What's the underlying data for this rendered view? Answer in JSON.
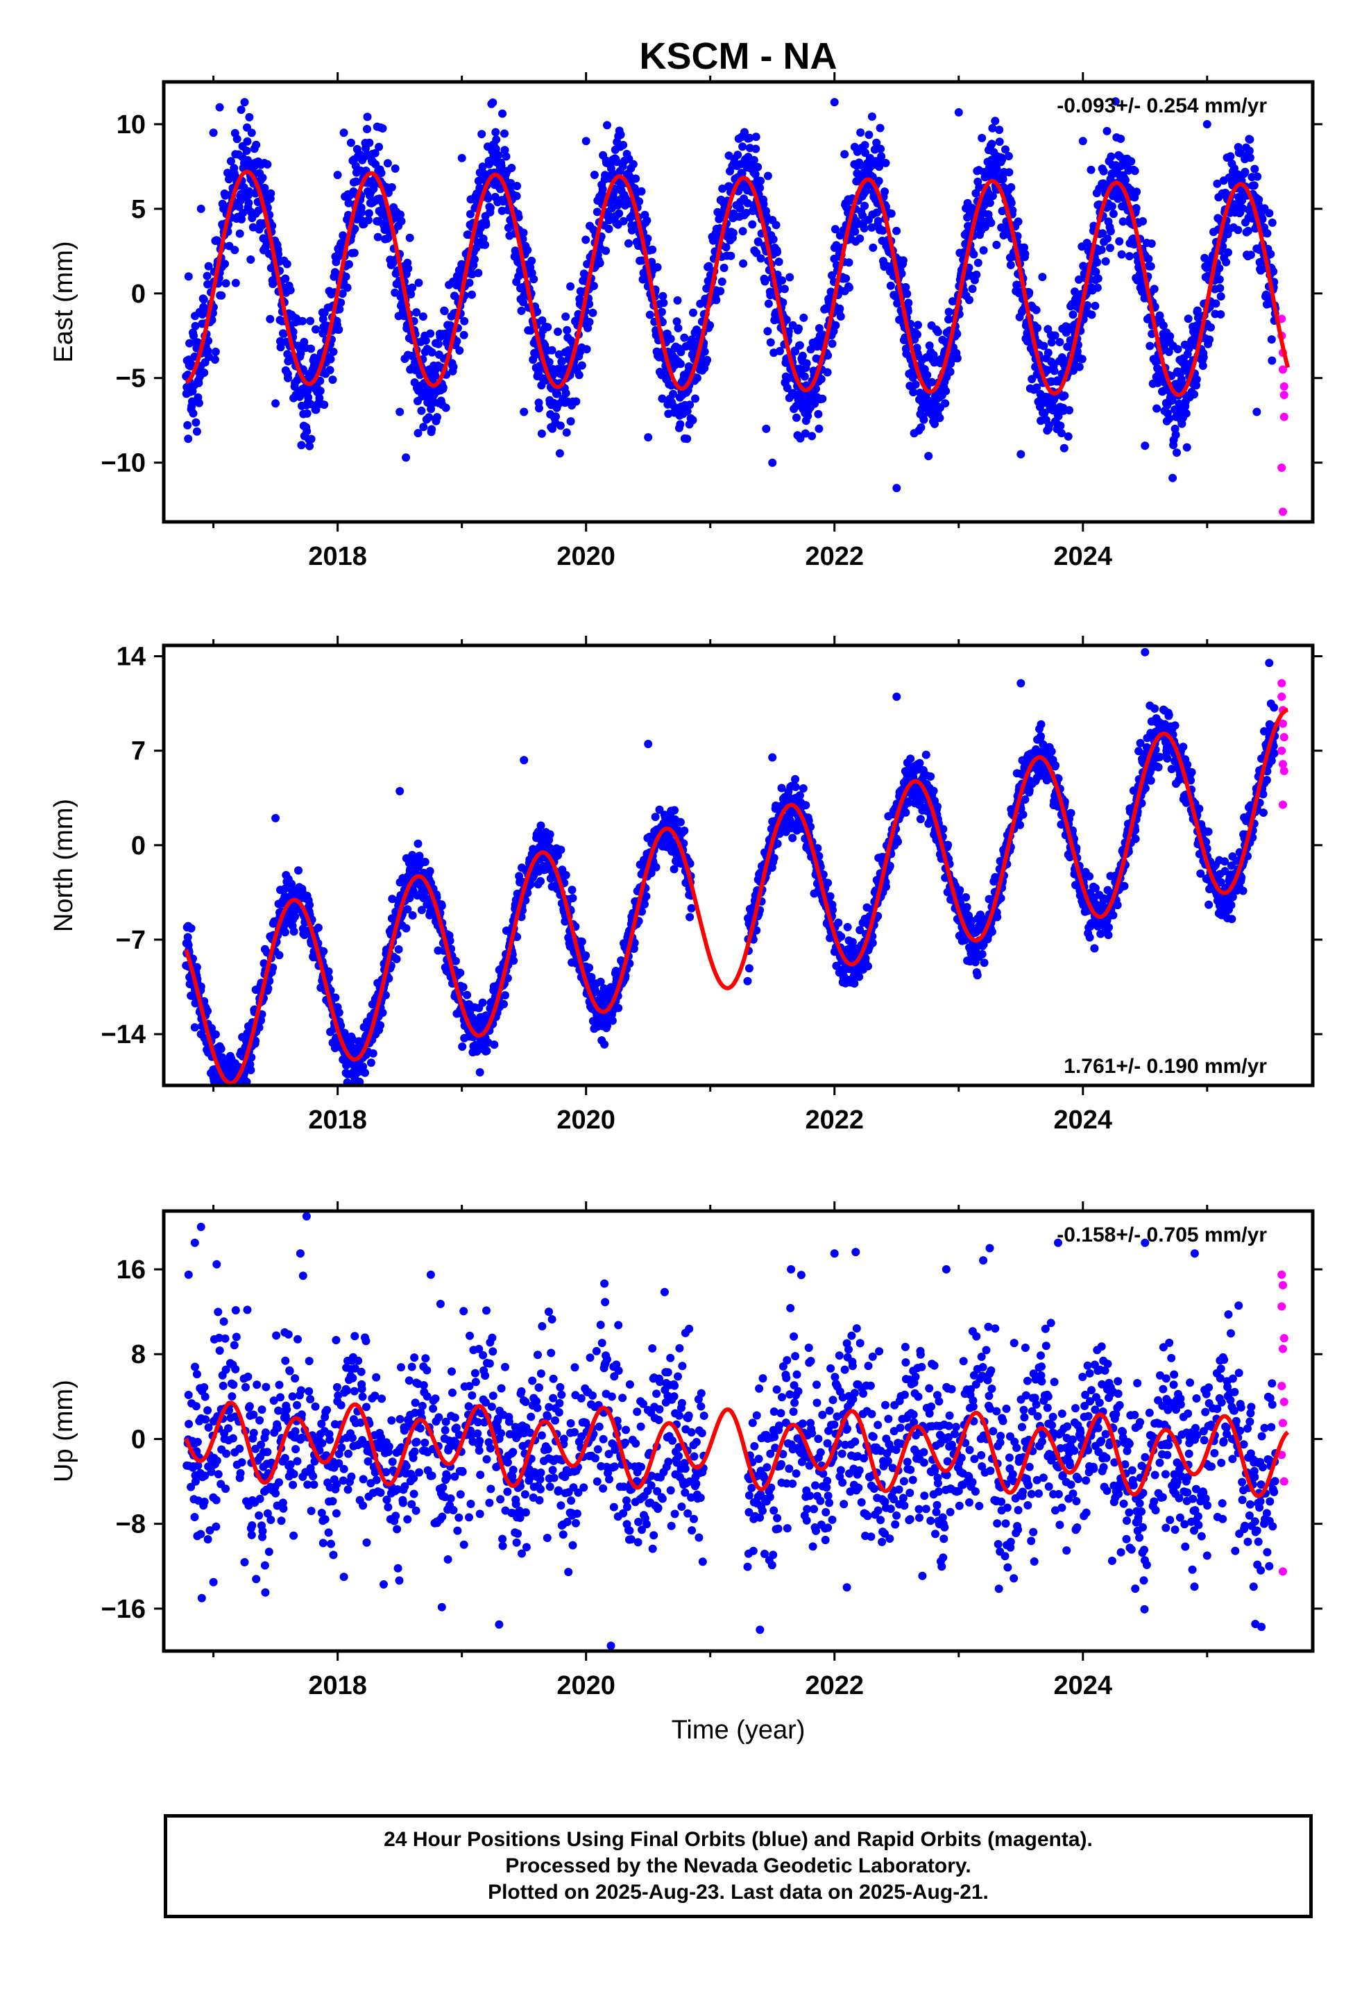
{
  "title": "KSCM - NA",
  "footer": {
    "line1": "24 Hour Positions Using Final Orbits (blue) and Rapid Orbits (magenta).",
    "line2": "Processed by the Nevada Geodetic Laboratory.",
    "line3": "Plotted on 2025-Aug-23. Last data on 2025-Aug-21."
  },
  "colors": {
    "final": "#0000ff",
    "rapid": "#ff00ff",
    "fit": "#ff0000",
    "axis": "#000000"
  },
  "chart_data": [
    {
      "type": "scatter",
      "ylabel": "East (mm)",
      "xlabel": "",
      "rate_label": "-0.093+/- 0.254 mm/yr",
      "rate_position": "top-right",
      "xlim": [
        2016.6,
        2025.85
      ],
      "ylim": [
        -13.5,
        12.5
      ],
      "xticks": [
        2018,
        2020,
        2022,
        2024
      ],
      "yticks": [
        10,
        5,
        0,
        -5,
        -10
      ],
      "ytick_labels": [
        "10",
        "5",
        "0",
        "−5",
        "−10"
      ],
      "data_span": [
        2016.78,
        2025.55
      ],
      "gaps": [],
      "model": {
        "mean": 0.6,
        "trend": -0.093,
        "ref": 2021.0,
        "annual_cos": -0.8,
        "annual_sin": 6.2,
        "semi_cos": 0.0,
        "semi_sin": 0.0
      },
      "scatter_sd": 1.6,
      "final_series": [
        {
          "x": 2016.8,
          "y": 1.0
        },
        {
          "x": 2016.9,
          "y": 5.0
        },
        {
          "x": 2017.0,
          "y": 9.5
        },
        {
          "x": 2017.05,
          "y": 11.0
        },
        {
          "x": 2017.3,
          "y": 2.0
        },
        {
          "x": 2017.5,
          "y": -6.5
        },
        {
          "x": 2017.6,
          "y": -5.0
        },
        {
          "x": 2018.0,
          "y": 7.0
        },
        {
          "x": 2018.05,
          "y": 9.5
        },
        {
          "x": 2018.5,
          "y": -7.0
        },
        {
          "x": 2018.55,
          "y": -9.7
        },
        {
          "x": 2019.0,
          "y": 8.0
        },
        {
          "x": 2019.5,
          "y": -7.0
        },
        {
          "x": 2020.0,
          "y": 9.0
        },
        {
          "x": 2020.5,
          "y": -8.5
        },
        {
          "x": 2021.45,
          "y": -8.0
        },
        {
          "x": 2021.5,
          "y": -10.0
        },
        {
          "x": 2022.0,
          "y": 11.3
        },
        {
          "x": 2022.5,
          "y": -11.5
        },
        {
          "x": 2023.0,
          "y": 10.7
        },
        {
          "x": 2023.5,
          "y": -9.5
        },
        {
          "x": 2024.0,
          "y": 9.0
        },
        {
          "x": 2024.5,
          "y": -9.0
        },
        {
          "x": 2025.0,
          "y": 10.0
        },
        {
          "x": 2025.4,
          "y": -7.0
        }
      ],
      "rapid_series": [
        {
          "x": 2025.6,
          "y": -1.5
        },
        {
          "x": 2025.6,
          "y": -2.5
        },
        {
          "x": 2025.61,
          "y": -3.5
        },
        {
          "x": 2025.61,
          "y": -4.5
        },
        {
          "x": 2025.62,
          "y": -5.5
        },
        {
          "x": 2025.62,
          "y": -6.0
        },
        {
          "x": 2025.62,
          "y": -7.3
        },
        {
          "x": 2025.6,
          "y": -10.3
        },
        {
          "x": 2025.61,
          "y": -12.9
        }
      ]
    },
    {
      "type": "scatter",
      "ylabel": "North (mm)",
      "xlabel": "",
      "rate_label": "1.761+/- 0.190 mm/yr",
      "rate_position": "bottom-right",
      "xlim": [
        2016.6,
        2025.85
      ],
      "ylim": [
        -17.8,
        14.8
      ],
      "xticks": [
        2018,
        2020,
        2022,
        2024
      ],
      "yticks": [
        14,
        7,
        0,
        -7,
        -14
      ],
      "ytick_labels": [
        "14",
        "7",
        "0",
        "−7",
        "−14"
      ],
      "data_span": [
        2016.78,
        2025.55
      ],
      "gaps": [
        [
          2020.85,
          2021.3
        ]
      ],
      "model": {
        "mean": -4.5,
        "trend": 1.761,
        "ref": 2021.0,
        "annual_cos": -3.9,
        "annual_sin": -5.0,
        "semi_cos": 0.0,
        "semi_sin": 0.0
      },
      "scatter_sd": 1.0,
      "final_series": [
        {
          "x": 2016.8,
          "y": -9.0
        },
        {
          "x": 2016.85,
          "y": -13.5
        },
        {
          "x": 2016.9,
          "y": -14.0
        },
        {
          "x": 2017.0,
          "y": -17.2
        },
        {
          "x": 2017.5,
          "y": 2.0
        },
        {
          "x": 2018.0,
          "y": -12.0
        },
        {
          "x": 2018.5,
          "y": 4.0
        },
        {
          "x": 2019.0,
          "y": -12.0
        },
        {
          "x": 2019.5,
          "y": 6.3
        },
        {
          "x": 2020.0,
          "y": -9.0
        },
        {
          "x": 2020.5,
          "y": 7.5
        },
        {
          "x": 2021.5,
          "y": 6.5
        },
        {
          "x": 2022.0,
          "y": -6.0
        },
        {
          "x": 2022.5,
          "y": 11.0
        },
        {
          "x": 2023.0,
          "y": -4.0
        },
        {
          "x": 2023.5,
          "y": 12.0
        },
        {
          "x": 2024.0,
          "y": -3.0
        },
        {
          "x": 2024.5,
          "y": 14.3
        },
        {
          "x": 2025.0,
          "y": 1.0
        },
        {
          "x": 2025.5,
          "y": 13.5
        }
      ],
      "rapid_series": [
        {
          "x": 2025.6,
          "y": 12.0
        },
        {
          "x": 2025.6,
          "y": 11.0
        },
        {
          "x": 2025.61,
          "y": 10.0
        },
        {
          "x": 2025.61,
          "y": 9.0
        },
        {
          "x": 2025.62,
          "y": 8.0
        },
        {
          "x": 2025.6,
          "y": 7.0
        },
        {
          "x": 2025.61,
          "y": 6.0
        },
        {
          "x": 2025.62,
          "y": 5.5
        },
        {
          "x": 2025.61,
          "y": 3.0
        }
      ]
    },
    {
      "type": "scatter",
      "ylabel": "Up (mm)",
      "xlabel": "Time (year)",
      "rate_label": "-0.158+/- 0.705 mm/yr",
      "rate_position": "top-right",
      "xlim": [
        2016.6,
        2025.85
      ],
      "ylim": [
        -20,
        21.5
      ],
      "xticks": [
        2018,
        2020,
        2022,
        2024
      ],
      "yticks": [
        16,
        8,
        0,
        -8,
        -16
      ],
      "ytick_labels": [
        "16",
        "8",
        "0",
        "−8",
        "−16"
      ],
      "data_span": [
        2016.78,
        2025.55
      ],
      "gaps": [
        [
          2020.95,
          2021.3
        ]
      ],
      "model": {
        "mean": -0.8,
        "trend": -0.158,
        "ref": 2021.0,
        "annual_cos": 1.2,
        "annual_sin": 0.0,
        "semi_cos": -1.0,
        "semi_sin": 2.7
      },
      "scatter_sd": 4.5,
      "final_series": [
        {
          "x": 2016.8,
          "y": 15.5
        },
        {
          "x": 2016.85,
          "y": 18.5
        },
        {
          "x": 2016.9,
          "y": 20.0
        },
        {
          "x": 2017.0,
          "y": -13.5
        },
        {
          "x": 2017.75,
          "y": 21.0
        },
        {
          "x": 2017.7,
          "y": 17.5
        },
        {
          "x": 2018.05,
          "y": -13.0
        },
        {
          "x": 2018.75,
          "y": 15.5
        },
        {
          "x": 2019.3,
          "y": -17.5
        },
        {
          "x": 2019.7,
          "y": 12.0
        },
        {
          "x": 2020.2,
          "y": -19.5
        },
        {
          "x": 2020.8,
          "y": 10.0
        },
        {
          "x": 2021.4,
          "y": -18.0
        },
        {
          "x": 2021.65,
          "y": 16.0
        },
        {
          "x": 2022.0,
          "y": 17.5
        },
        {
          "x": 2022.1,
          "y": -14.0
        },
        {
          "x": 2022.9,
          "y": 16.0
        },
        {
          "x": 2023.25,
          "y": 18.0
        },
        {
          "x": 2023.8,
          "y": 18.5
        },
        {
          "x": 2024.5,
          "y": 18.5
        },
        {
          "x": 2024.9,
          "y": 17.5
        },
        {
          "x": 2025.0,
          "y": -11.0
        },
        {
          "x": 2025.5,
          "y": -12.0
        }
      ],
      "rapid_series": [
        {
          "x": 2025.6,
          "y": 15.5
        },
        {
          "x": 2025.61,
          "y": 14.5
        },
        {
          "x": 2025.6,
          "y": 12.5
        },
        {
          "x": 2025.62,
          "y": 9.5
        },
        {
          "x": 2025.61,
          "y": 8.5
        },
        {
          "x": 2025.6,
          "y": 5.0
        },
        {
          "x": 2025.62,
          "y": 3.5
        },
        {
          "x": 2025.61,
          "y": 1.5
        },
        {
          "x": 2025.6,
          "y": -1.5
        },
        {
          "x": 2025.62,
          "y": -4.0
        },
        {
          "x": 2025.61,
          "y": -12.5
        }
      ]
    }
  ]
}
